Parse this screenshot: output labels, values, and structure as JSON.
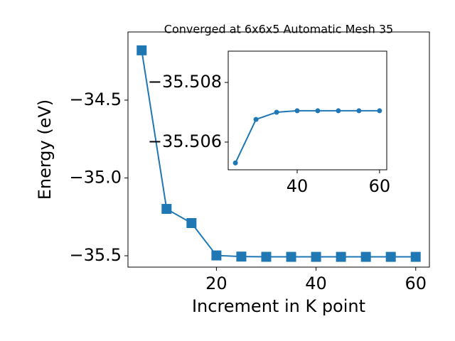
{
  "chart_data": [
    {
      "type": "line",
      "title": "Converged at 6x6x5 Automatic Mesh 35",
      "x_label": "Increment in K point",
      "y_label": "Energy (eV)",
      "x": [
        5,
        10,
        15,
        20,
        25,
        30,
        35,
        40,
        45,
        50,
        55,
        60
      ],
      "series": [
        {
          "color": "#1f77b4",
          "marker": "square",
          "values": [
            -34.18,
            -35.199,
            -35.29,
            -35.498,
            -35.5053,
            -35.50676,
            -35.507,
            -35.50705,
            -35.50705,
            -35.50705,
            -35.50705,
            -35.50705
          ]
        }
      ],
      "xlim": [
        2.25,
        62.75
      ],
      "xticks": [
        20,
        40,
        60
      ],
      "ylim": [
        -35.573,
        -34.062
      ],
      "yticks": [
        {
          "value": -35.5,
          "label": "−35.5"
        },
        {
          "value": -35.0,
          "label": "−35.0"
        },
        {
          "value": -34.5,
          "label": "−34.5"
        }
      ]
    },
    {
      "type": "line",
      "x": [
        25,
        30,
        35,
        40,
        45,
        50,
        55,
        60
      ],
      "series": [
        {
          "color": "#1f77b4",
          "marker": "circle",
          "values": [
            -35.5053,
            -35.50676,
            -35.507,
            -35.50705,
            -35.50705,
            -35.50705,
            -35.50705,
            -35.50705
          ]
        }
      ],
      "xlim": [
        23.25,
        61.75
      ],
      "xticks": [
        40,
        60
      ],
      "ylim": [
        -35.50507,
        -35.50905
      ],
      "yticks": [
        {
          "value": -35.508,
          "label": "−35.508"
        },
        {
          "value": -35.506,
          "label": "−35.506"
        }
      ]
    }
  ]
}
